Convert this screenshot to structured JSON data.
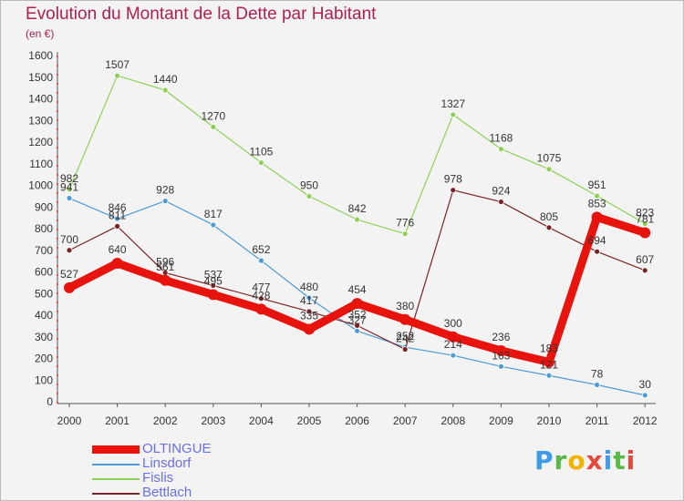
{
  "title": "Evolution du Montant de la Dette par Habitant",
  "subtitle": "(en €)",
  "logo": {
    "text": "Proxiti",
    "letters": [
      "P",
      "r",
      "o",
      "x",
      "i",
      "t",
      "i"
    ]
  },
  "chart_data": {
    "type": "line",
    "x": [
      "2000",
      "2001",
      "2002",
      "2003",
      "2004",
      "2005",
      "2006",
      "2007",
      "2008",
      "2009",
      "2010",
      "2011",
      "2012"
    ],
    "ylim": [
      0,
      1600
    ],
    "yticks": [
      0,
      100,
      200,
      300,
      400,
      500,
      600,
      700,
      800,
      900,
      1000,
      1100,
      1200,
      1300,
      1400,
      1500,
      1600
    ],
    "grid": false,
    "legend_position": "bottom-left",
    "series": [
      {
        "name": "OLTINGUE",
        "color": "#e8130d",
        "values": [
          527,
          640,
          561,
          495,
          428,
          335,
          454,
          380,
          300,
          236,
          183,
          853,
          781
        ],
        "labels": [
          "527",
          "640",
          "561",
          "495",
          "428",
          "335",
          "454",
          "380",
          "300",
          "236",
          "183",
          "853",
          "781"
        ]
      },
      {
        "name": "Linsdorf",
        "color": "#4d9bd8",
        "values": [
          941,
          846,
          928,
          817,
          652,
          480,
          327,
          252,
          214,
          163,
          121,
          78,
          30
        ],
        "labels": [
          "941",
          "846",
          "928",
          "817",
          "652",
          "480",
          "327",
          "252",
          "214",
          "163",
          "121",
          "78",
          "30"
        ]
      },
      {
        "name": "Fislis",
        "color": "#8ed056",
        "values": [
          982,
          1507,
          1440,
          1270,
          1105,
          950,
          842,
          776,
          1327,
          1168,
          1075,
          951,
          823
        ],
        "labels": [
          "982",
          "1507",
          "1440",
          "1270",
          "1105",
          "950",
          "842",
          "776",
          "1327",
          "1168",
          "1075",
          "951",
          "823"
        ]
      },
      {
        "name": "Bettlach",
        "color": "#7a2324",
        "values": [
          700,
          811,
          596,
          537,
          477,
          417,
          352,
          242,
          978,
          924,
          805,
          694,
          607
        ],
        "labels": [
          "700",
          "811",
          "596",
          "537",
          "477",
          "417",
          "352",
          "242",
          "978",
          "924",
          "805",
          "694",
          "607"
        ]
      }
    ]
  }
}
